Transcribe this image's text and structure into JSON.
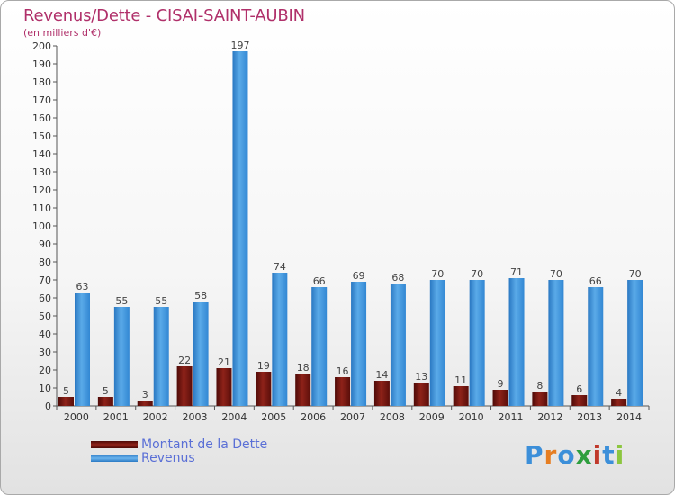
{
  "header": {
    "title": "Revenus/Dette - CISAI-SAINT-AUBIN",
    "subtitle": "(en milliers d'€)"
  },
  "legend": {
    "items": [
      {
        "label": "Montant de la Dette",
        "color": "#7a1a14"
      },
      {
        "label": "Revenus",
        "color": "#3c8fd9"
      }
    ]
  },
  "logo": {
    "text": "Proxiti",
    "letters": [
      "P",
      "r",
      "o",
      "x",
      "i",
      "t",
      "i"
    ],
    "colors": [
      "#3c8fd9",
      "#e67e22",
      "#3c8fd9",
      "#2e9e3e",
      "#c0392b",
      "#3c8fd9",
      "#8cc63f"
    ]
  },
  "chart_data": {
    "type": "bar",
    "categories": [
      "2000",
      "2001",
      "2002",
      "2003",
      "2004",
      "2005",
      "2006",
      "2007",
      "2008",
      "2009",
      "2010",
      "2011",
      "2012",
      "2013",
      "2014"
    ],
    "series": [
      {
        "name": "Montant de la Dette",
        "color": "#7a1a14",
        "values": [
          5,
          5,
          3,
          22,
          21,
          19,
          18,
          16,
          14,
          13,
          11,
          9,
          8,
          6,
          4
        ]
      },
      {
        "name": "Revenus",
        "color": "#3c8fd9",
        "values": [
          63,
          55,
          55,
          58,
          197,
          74,
          66,
          69,
          68,
          70,
          70,
          71,
          70,
          66,
          70
        ]
      }
    ],
    "title": "Revenus/Dette - CISAI-SAINT-AUBIN",
    "ylabel": "(en milliers d'€)",
    "ylim": [
      0,
      200
    ],
    "yticks": [
      0,
      10,
      20,
      30,
      40,
      50,
      60,
      70,
      80,
      90,
      100,
      110,
      120,
      130,
      140,
      150,
      160,
      170,
      180,
      190,
      200
    ],
    "grid": false,
    "legend_position": "bottom-left"
  }
}
